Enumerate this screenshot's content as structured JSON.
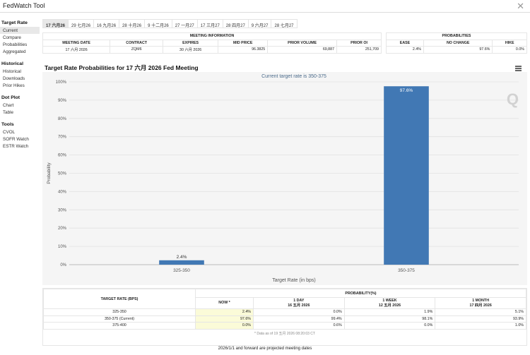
{
  "window": {
    "title": "FedWatch Tool",
    "close": "✕"
  },
  "sidebar": {
    "sections": [
      {
        "title": "Target Rate",
        "items": [
          "Current",
          "Compare",
          "Probabilities",
          "Aggregated"
        ]
      },
      {
        "title": "Historical",
        "items": [
          "Historical",
          "Downloads",
          "Prior Hikes"
        ]
      },
      {
        "title": "Dot Plot",
        "items": [
          "Chart",
          "Table"
        ]
      },
      {
        "title": "Tools",
        "items": [
          "CVOL",
          "SOFR Watch",
          "ESTR Watch"
        ]
      }
    ],
    "active": "Current"
  },
  "tabs": [
    "17 六月26",
    "29 七月26",
    "16 九月26",
    "28 十月26",
    "9 十二月26",
    "27 一月27",
    "17 三月27",
    "28 四月27",
    "9 六月27",
    "28 七月27"
  ],
  "meeting_info": {
    "title": "MEETING INFORMATION",
    "headers": [
      "MEETING DATE",
      "CONTRACT",
      "EXPIRES",
      "MID PRICE",
      "PRIOR VOLUME",
      "PRIOR OI"
    ],
    "row": [
      "17 六月 2026",
      "ZQM6",
      "30 六月 2026",
      "96.3825",
      "69,887",
      "251,709"
    ]
  },
  "probabilities": {
    "title": "PROBABILITIES",
    "headers": [
      "EASE",
      "NO CHANGE",
      "HIKE"
    ],
    "row": [
      "2.4%",
      "97.6%",
      "0.0%"
    ]
  },
  "chart": {
    "title": "Target Rate Probabilities for 17 六月 2026 Fed Meeting",
    "menu_icon": "hamburger-menu-icon",
    "logo": "Q"
  },
  "chart_data": {
    "type": "bar",
    "subtitle": "Current target rate is 350-375",
    "categories": [
      "325-350",
      "350-375"
    ],
    "values": [
      2.4,
      97.6
    ],
    "data_labels": [
      "2.4%",
      "97.6%"
    ],
    "xlabel": "Target Rate (in bps)",
    "ylabel": "Probability",
    "ylim": [
      0,
      100
    ],
    "y_ticks": [
      "0%",
      "10%",
      "20%",
      "30%",
      "40%",
      "50%",
      "60%",
      "70%",
      "80%",
      "90%",
      "100%"
    ],
    "color": "#4178b4",
    "grid": true
  },
  "prob_table": {
    "col1": "TARGET RATE (BPS)",
    "group": "PROBABILITY(%)",
    "cols": [
      {
        "l1": "NOW *",
        "l2": ""
      },
      {
        "l1": "1 DAY",
        "l2": "16 五月 2026"
      },
      {
        "l1": "1 WEEK",
        "l2": "12 五月 2026"
      },
      {
        "l1": "1 MONTH",
        "l2": "17 四月 2026"
      }
    ],
    "rows": [
      [
        "325-350",
        "2.4%",
        "0.0%",
        "1.9%",
        "5.1%"
      ],
      [
        "350-375 (Current)",
        "97.6%",
        "99.4%",
        "98.1%",
        "93.9%"
      ],
      [
        "375-400",
        "0.0%",
        "0.6%",
        "0.0%",
        "1.0%"
      ]
    ],
    "note": "* Data as of 19 五月 2026 08:20:03 CT"
  },
  "footer": "2026/1/1 and forward are projected meeting dates"
}
